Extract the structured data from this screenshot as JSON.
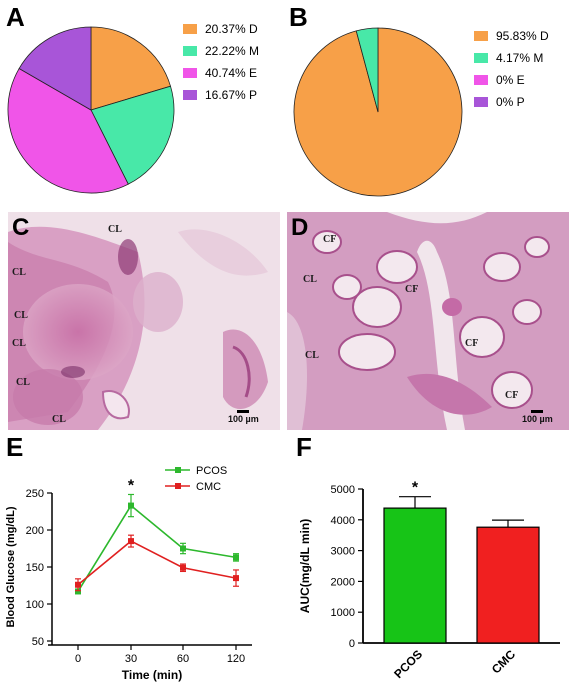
{
  "panels": {
    "a": "A",
    "b": "B",
    "c": "C",
    "d": "D",
    "e": "E",
    "f": "F"
  },
  "chart_data": [
    {
      "id": "A",
      "type": "pie",
      "slices": [
        {
          "label": "20.37% D",
          "value": 20.37,
          "color": "#F7A048"
        },
        {
          "label": "22.22% M",
          "value": 22.22,
          "color": "#48E8A8"
        },
        {
          "label": "40.74% E",
          "value": 40.74,
          "color": "#F055E8"
        },
        {
          "label": "16.67% P",
          "value": 16.67,
          "color": "#A855D8"
        }
      ]
    },
    {
      "id": "B",
      "type": "pie",
      "slices": [
        {
          "label": "95.83% D",
          "value": 95.83,
          "color": "#F7A048"
        },
        {
          "label": "4.17% M",
          "value": 4.17,
          "color": "#48E8A8"
        },
        {
          "label": "0% E",
          "value": 0,
          "color": "#F055E8"
        },
        {
          "label": "0% P",
          "value": 0,
          "color": "#A855D8"
        }
      ]
    },
    {
      "id": "E",
      "type": "line",
      "x": [
        0,
        30,
        60,
        120
      ],
      "xlabel": "Time (min)",
      "ylabel": "Blood Glucose (mg/dL)",
      "ylim": [
        50,
        250
      ],
      "yticks": [
        50,
        100,
        150,
        200,
        250
      ],
      "xtick_labels": [
        "0",
        "30",
        "60",
        "120"
      ],
      "legend": "top-right",
      "annotation": "*",
      "series": [
        {
          "name": "PCOS",
          "color": "#2DB82D",
          "values": [
            117,
            233,
            175,
            163
          ],
          "errors": [
            3,
            15,
            7,
            5
          ]
        },
        {
          "name": "CMC",
          "color": "#E02020",
          "values": [
            126,
            185,
            149,
            135
          ],
          "errors": [
            8,
            8,
            5,
            11
          ]
        }
      ]
    },
    {
      "id": "F",
      "type": "bar",
      "categories": [
        "PCOS",
        "CMC"
      ],
      "values": [
        4380,
        3760
      ],
      "errors": [
        370,
        230
      ],
      "colors": [
        "#17C417",
        "#F02020"
      ],
      "ylabel": "AUC(mg/dL min)",
      "ylim": [
        0,
        5000
      ],
      "yticks": [
        0,
        1000,
        2000,
        3000,
        4000,
        5000
      ],
      "annotation": "*"
    }
  ],
  "micrographs": {
    "c": {
      "labels": [
        "CL",
        "CL",
        "CL",
        "CL",
        "CL",
        "CL"
      ],
      "scale": "100 µm"
    },
    "d": {
      "labels": [
        "CF",
        "CL",
        "CF",
        "CL",
        "CF",
        "CF"
      ],
      "scale": "100 µm"
    }
  }
}
